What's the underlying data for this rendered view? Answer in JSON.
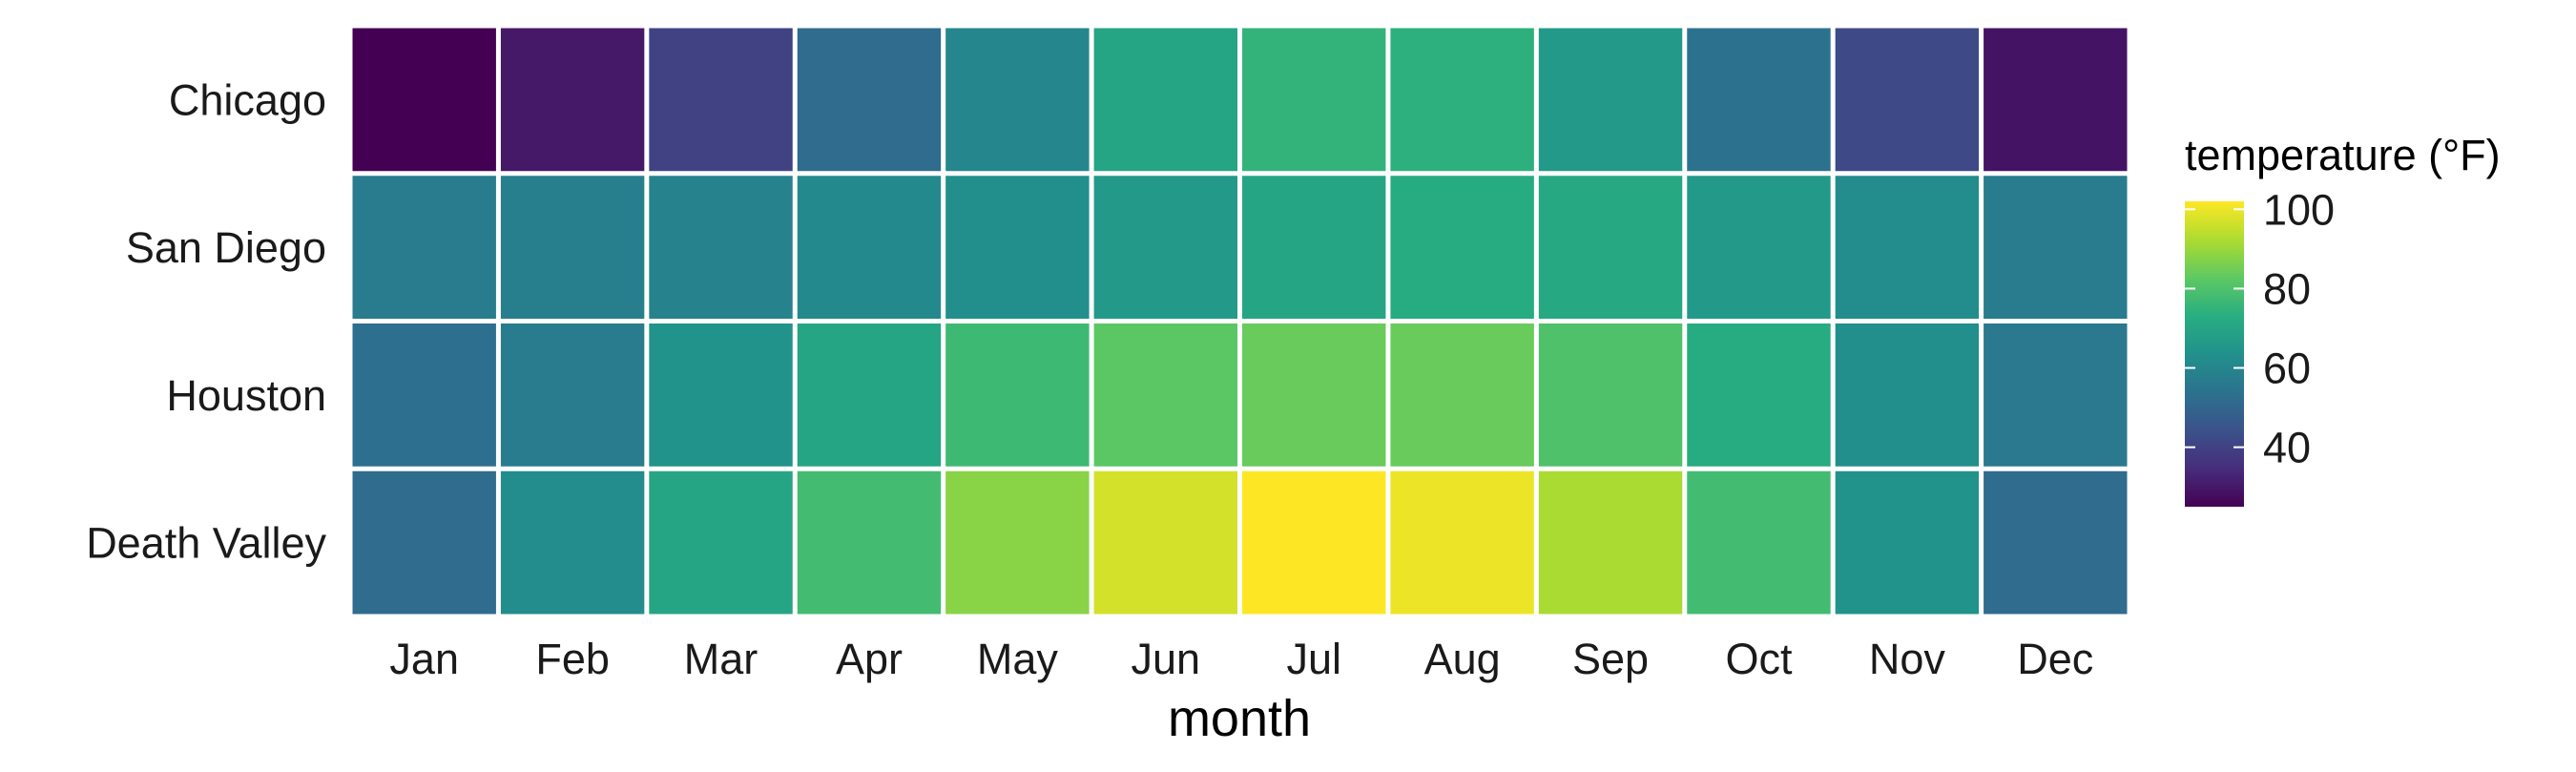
{
  "chart_data": {
    "type": "heatmap",
    "title": "",
    "xlabel": "month",
    "ylabel": "",
    "x_categories": [
      "Jan",
      "Feb",
      "Mar",
      "Apr",
      "May",
      "Jun",
      "Jul",
      "Aug",
      "Sep",
      "Oct",
      "Nov",
      "Dec"
    ],
    "y_categories": [
      "Chicago",
      "San Diego",
      "Houston",
      "Death Valley"
    ],
    "values": [
      [
        25,
        30,
        40,
        52,
        60,
        70,
        75,
        74,
        66,
        54,
        42,
        29
      ],
      [
        57,
        58,
        59,
        61,
        63,
        66,
        70,
        72,
        71,
        66,
        62,
        57
      ],
      [
        53,
        57,
        64,
        70,
        77,
        82,
        84,
        84,
        80,
        72,
        63,
        56
      ],
      [
        52,
        62,
        70,
        78,
        88,
        97,
        102,
        100,
        92,
        78,
        64,
        52
      ]
    ],
    "legend": {
      "title": "temperature (°F)",
      "ticks": [
        40,
        60,
        80,
        100
      ],
      "range": [
        25,
        102
      ],
      "colormap": "viridis",
      "placement": "right"
    }
  }
}
